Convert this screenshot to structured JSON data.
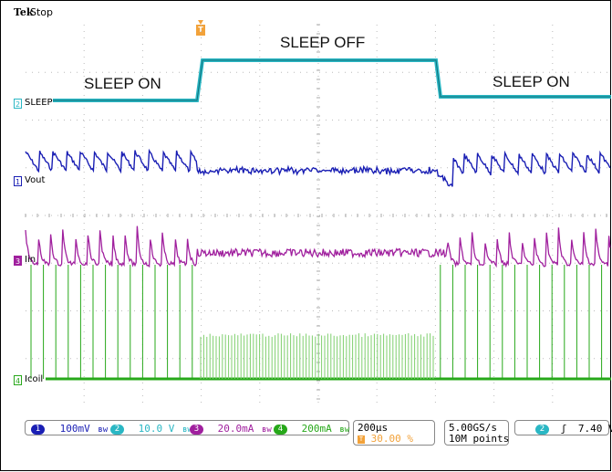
{
  "header": {
    "brand": "Tek",
    "acq_state": "Stop"
  },
  "trigger_marker": "T",
  "annotations": {
    "sleep_off": "SLEEP OFF",
    "sleep_on_left": "SLEEP ON",
    "sleep_on_right": "SLEEP ON"
  },
  "channels": [
    {
      "marker": "2",
      "name": "SLEEP",
      "color": "#2ab7c4"
    },
    {
      "marker": "1",
      "name": "Vout",
      "color": "#1a1fb4"
    },
    {
      "marker": "3",
      "name": "Iin",
      "color": "#a0209e"
    },
    {
      "marker": "4",
      "name": "Icoil",
      "color": "#27a81a"
    }
  ],
  "statusbar": {
    "ch1": {
      "num": "1",
      "scale": "100mV",
      "bw": "ʙw",
      "color": "#1a1fb4"
    },
    "ch2": {
      "num": "2",
      "scale": "10.0 V",
      "bw": "ʙw",
      "color": "#2ab7c4"
    },
    "ch3": {
      "num": "3",
      "scale": "20.0mA",
      "bw": "ʙw",
      "color": "#a0209e"
    },
    "ch4": {
      "num": "4",
      "scale": "200mA",
      "bw": "ʙw",
      "color": "#27a81a"
    },
    "timebase": "200µs",
    "trigger_pos": "30.00 %",
    "sample_rate": "5.00GS/s",
    "record_length": "10M points",
    "trigger_channel": "2",
    "trigger_slope": "ʃ",
    "trigger_level": "7.40 V"
  }
}
